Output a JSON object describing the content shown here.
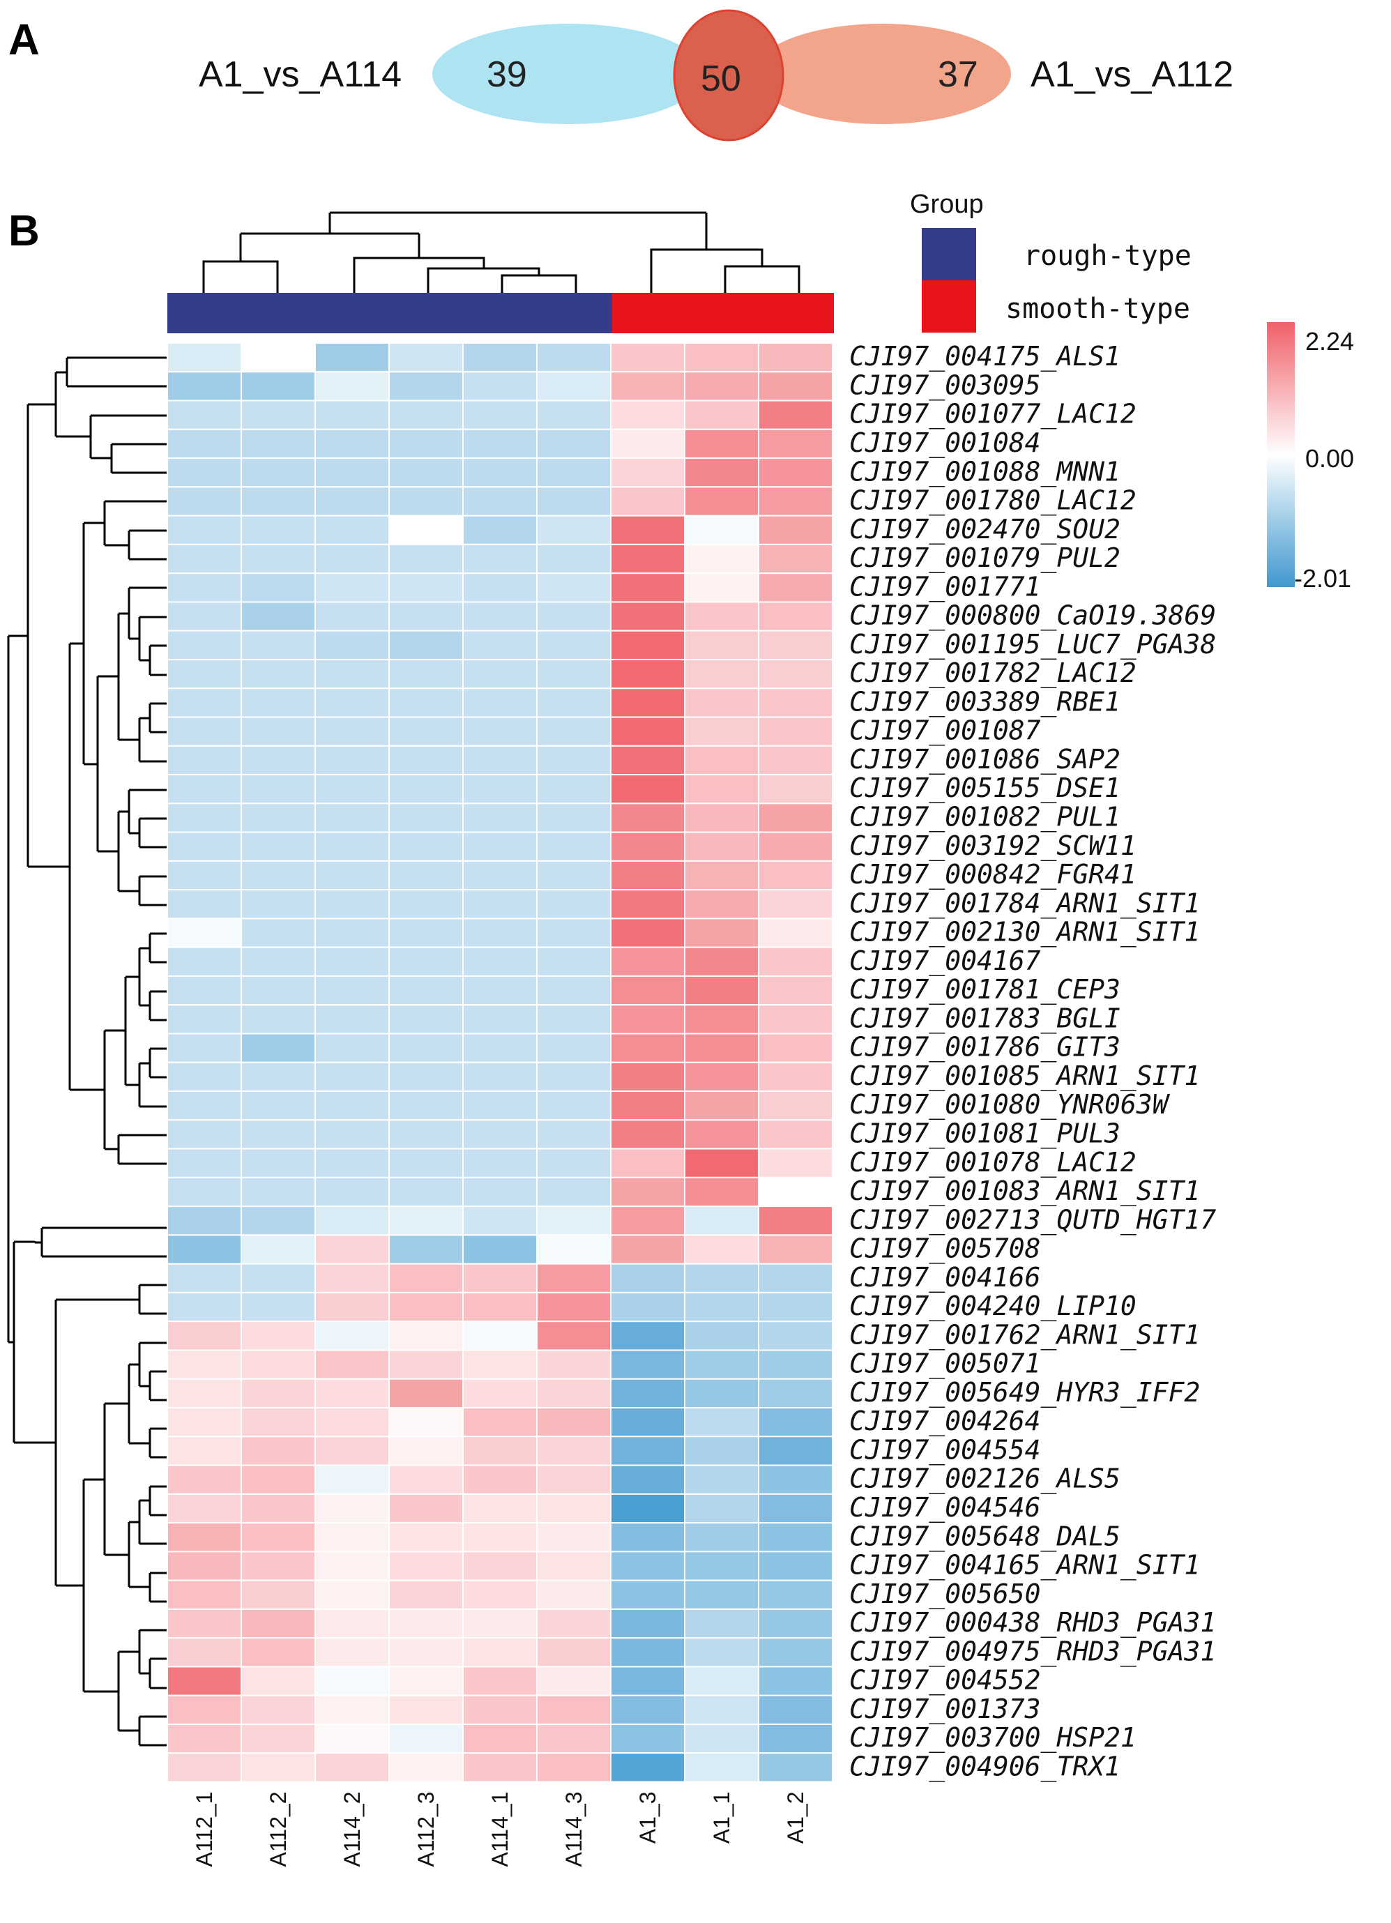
{
  "panel_a": {
    "letter": "A",
    "left_label": "A1_vs_A114",
    "right_label": "A1_vs_A112",
    "left_only": "39",
    "overlap": "50",
    "right_only": "37",
    "left_color": "#aee3f2",
    "right_color": "#f2a58a",
    "overlap_color": "#d9614e"
  },
  "panel_b": {
    "letter": "B",
    "group_legend": {
      "title": "Group",
      "items": [
        {
          "label": "rough-type",
          "color": "#363c8c"
        },
        {
          "label": "smooth-type",
          "color": "#e8131b"
        }
      ]
    },
    "color_scale": {
      "max": "2.24",
      "mid": "0.00",
      "min": "-2.01",
      "low_color": "#3f98cf",
      "mid_color": "#ffffff",
      "high_color": "#f06069"
    }
  },
  "chart_data": {
    "type": "heatmap",
    "title": "",
    "samples": [
      "A112_1",
      "A112_2",
      "A114_2",
      "A112_3",
      "A114_1",
      "A114_3",
      "A1_3",
      "A1_1",
      "A1_2"
    ],
    "sample_groups": [
      "rough-type",
      "rough-type",
      "rough-type",
      "rough-type",
      "rough-type",
      "rough-type",
      "smooth-type",
      "smooth-type",
      "smooth-type"
    ],
    "genes": [
      "CJI97_004175_ALS1",
      "CJI97_003095",
      "CJI97_001077_LAC12",
      "CJI97_001084",
      "CJI97_001088_MNN1",
      "CJI97_001780_LAC12",
      "CJI97_002470_SOU2",
      "CJI97_001079_PUL2",
      "CJI97_001771",
      "CJI97_000800_CaO19.3869",
      "CJI97_001195_LUC7_PGA38",
      "CJI97_001782_LAC12",
      "CJI97_003389_RBE1",
      "CJI97_001087",
      "CJI97_001086_SAP2",
      "CJI97_005155_DSE1",
      "CJI97_001082_PUL1",
      "CJI97_003192_SCW11",
      "CJI97_000842_FGR41",
      "CJI97_001784_ARN1_SIT1",
      "CJI97_002130_ARN1_SIT1",
      "CJI97_004167",
      "CJI97_001781_CEP3",
      "CJI97_001783_BGLI",
      "CJI97_001786_GIT3",
      "CJI97_001085_ARN1_SIT1",
      "CJI97_001080_YNR063W",
      "CJI97_001081_PUL3",
      "CJI97_001078_LAC12",
      "CJI97_001083_ARN1_SIT1",
      "CJI97_002713_QUTD_HGT17",
      "CJI97_005708",
      "CJI97_004166",
      "CJI97_004240_LIP10",
      "CJI97_001762_ARN1_SIT1",
      "CJI97_005071",
      "CJI97_005649_HYR3_IFF2",
      "CJI97_004264",
      "CJI97_004554",
      "CJI97_002126_ALS5",
      "CJI97_004546",
      "CJI97_005648_DAL5",
      "CJI97_004165_ARN1_SIT1",
      "CJI97_005650",
      "CJI97_000438_RHD3_PGA31",
      "CJI97_004975_RHD3_PGA31",
      "CJI97_004552",
      "CJI97_001373",
      "CJI97_003700_HSP21",
      "CJI97_004906_TRX1"
    ],
    "values": [
      [
        -0.4,
        0.0,
        -1.0,
        -0.5,
        -0.8,
        -0.7,
        0.8,
        0.9,
        1.0
      ],
      [
        -1.0,
        -1.0,
        -0.3,
        -0.8,
        -0.6,
        -0.4,
        1.1,
        1.2,
        1.3
      ],
      [
        -0.6,
        -0.6,
        -0.6,
        -0.6,
        -0.6,
        -0.6,
        0.5,
        0.8,
        1.8
      ],
      [
        -0.7,
        -0.7,
        -0.7,
        -0.7,
        -0.7,
        -0.7,
        0.3,
        1.6,
        1.4
      ],
      [
        -0.7,
        -0.7,
        -0.7,
        -0.7,
        -0.7,
        -0.7,
        0.6,
        1.7,
        1.5
      ],
      [
        -0.7,
        -0.7,
        -0.7,
        -0.7,
        -0.7,
        -0.7,
        0.8,
        1.6,
        1.4
      ],
      [
        -0.6,
        -0.6,
        -0.6,
        0.0,
        -0.8,
        -0.5,
        2.0,
        -0.1,
        1.3
      ],
      [
        -0.6,
        -0.6,
        -0.6,
        -0.6,
        -0.6,
        -0.6,
        2.0,
        0.2,
        1.1
      ],
      [
        -0.6,
        -0.7,
        -0.5,
        -0.5,
        -0.6,
        -0.5,
        2.0,
        0.2,
        1.2
      ],
      [
        -0.6,
        -0.9,
        -0.6,
        -0.6,
        -0.6,
        -0.6,
        2.0,
        0.8,
        0.9
      ],
      [
        -0.6,
        -0.6,
        -0.7,
        -0.8,
        -0.6,
        -0.6,
        2.1,
        0.7,
        0.7
      ],
      [
        -0.6,
        -0.6,
        -0.6,
        -0.6,
        -0.6,
        -0.6,
        2.1,
        0.7,
        0.7
      ],
      [
        -0.6,
        -0.6,
        -0.6,
        -0.6,
        -0.6,
        -0.6,
        2.1,
        0.8,
        0.8
      ],
      [
        -0.6,
        -0.6,
        -0.6,
        -0.6,
        -0.6,
        -0.6,
        2.1,
        0.7,
        0.8
      ],
      [
        -0.6,
        -0.6,
        -0.6,
        -0.6,
        -0.6,
        -0.6,
        2.0,
        0.9,
        0.8
      ],
      [
        -0.6,
        -0.6,
        -0.6,
        -0.6,
        -0.6,
        -0.6,
        2.1,
        0.9,
        0.7
      ],
      [
        -0.6,
        -0.6,
        -0.6,
        -0.6,
        -0.6,
        -0.6,
        1.7,
        1.0,
        1.3
      ],
      [
        -0.6,
        -0.6,
        -0.6,
        -0.6,
        -0.6,
        -0.6,
        1.7,
        1.0,
        1.2
      ],
      [
        -0.6,
        -0.6,
        -0.6,
        -0.6,
        -0.6,
        -0.6,
        1.8,
        1.1,
        0.9
      ],
      [
        -0.6,
        -0.6,
        -0.6,
        -0.6,
        -0.6,
        -0.6,
        1.9,
        1.2,
        0.6
      ],
      [
        -0.1,
        -0.6,
        -0.6,
        -0.6,
        -0.6,
        -0.6,
        2.0,
        1.3,
        0.3
      ],
      [
        -0.6,
        -0.6,
        -0.6,
        -0.6,
        -0.6,
        -0.6,
        1.5,
        1.7,
        0.8
      ],
      [
        -0.6,
        -0.6,
        -0.6,
        -0.6,
        -0.6,
        -0.6,
        1.6,
        1.8,
        0.8
      ],
      [
        -0.6,
        -0.6,
        -0.6,
        -0.6,
        -0.6,
        -0.6,
        1.5,
        1.6,
        0.8
      ],
      [
        -0.6,
        -1.0,
        -0.6,
        -0.6,
        -0.6,
        -0.6,
        1.6,
        1.6,
        0.9
      ],
      [
        -0.6,
        -0.6,
        -0.6,
        -0.6,
        -0.6,
        -0.6,
        1.8,
        1.5,
        0.8
      ],
      [
        -0.6,
        -0.6,
        -0.6,
        -0.6,
        -0.6,
        -0.6,
        1.8,
        1.3,
        0.7
      ],
      [
        -0.6,
        -0.6,
        -0.6,
        -0.6,
        -0.6,
        -0.6,
        1.8,
        1.5,
        0.8
      ],
      [
        -0.6,
        -0.6,
        -0.6,
        -0.6,
        -0.6,
        -0.6,
        0.9,
        2.1,
        0.5
      ],
      [
        -0.6,
        -0.6,
        -0.6,
        -0.6,
        -0.6,
        -0.6,
        1.3,
        1.6,
        0.0
      ],
      [
        -0.9,
        -0.8,
        -0.4,
        -0.3,
        -0.5,
        -0.3,
        1.4,
        -0.4,
        1.8
      ],
      [
        -1.2,
        -0.3,
        0.6,
        -1.0,
        -1.2,
        -0.1,
        1.3,
        0.5,
        1.1
      ],
      [
        -0.6,
        -0.6,
        0.6,
        0.9,
        0.8,
        1.4,
        -0.9,
        -0.8,
        -0.8
      ],
      [
        -0.6,
        -0.6,
        0.7,
        0.9,
        0.9,
        1.5,
        -0.9,
        -0.8,
        -0.8
      ],
      [
        0.7,
        0.5,
        -0.2,
        0.2,
        -0.1,
        1.6,
        -1.6,
        -0.9,
        -0.8
      ],
      [
        0.4,
        0.5,
        0.8,
        0.6,
        0.4,
        0.6,
        -1.4,
        -1.0,
        -1.0
      ],
      [
        0.4,
        0.6,
        0.5,
        1.3,
        0.5,
        0.6,
        -1.5,
        -1.1,
        -1.0
      ],
      [
        0.4,
        0.6,
        0.5,
        0.1,
        0.9,
        1.0,
        -1.6,
        -0.7,
        -1.3
      ],
      [
        0.4,
        0.8,
        0.6,
        0.2,
        0.7,
        0.6,
        -1.5,
        -0.9,
        -1.5
      ],
      [
        0.8,
        0.9,
        -0.2,
        0.5,
        0.8,
        0.6,
        -1.6,
        -0.8,
        -1.2
      ],
      [
        0.6,
        0.8,
        0.2,
        0.8,
        0.4,
        0.4,
        -1.9,
        -0.8,
        -1.3
      ],
      [
        1.1,
        0.9,
        0.2,
        0.4,
        0.4,
        0.3,
        -1.3,
        -1.0,
        -1.2
      ],
      [
        1.0,
        0.8,
        0.2,
        0.5,
        0.6,
        0.4,
        -1.2,
        -1.1,
        -1.2
      ],
      [
        0.9,
        0.7,
        0.2,
        0.6,
        0.5,
        0.3,
        -1.2,
        -1.1,
        -1.1
      ],
      [
        0.8,
        1.0,
        0.3,
        0.3,
        0.3,
        0.6,
        -1.4,
        -0.8,
        -1.1
      ],
      [
        0.7,
        0.9,
        0.3,
        0.3,
        0.4,
        0.7,
        -1.4,
        -0.7,
        -1.1
      ],
      [
        1.9,
        0.4,
        -0.1,
        0.2,
        0.8,
        0.3,
        -1.4,
        -0.4,
        -1.2
      ],
      [
        0.9,
        0.6,
        0.2,
        0.4,
        0.8,
        0.9,
        -1.3,
        -0.5,
        -1.3
      ],
      [
        0.8,
        0.6,
        0.1,
        -0.2,
        0.9,
        0.8,
        -1.2,
        -0.5,
        -1.3
      ],
      [
        0.6,
        0.4,
        0.6,
        0.2,
        0.8,
        0.9,
        -1.8,
        -0.4,
        -1.1
      ]
    ],
    "value_range": [
      -2.01,
      2.24
    ]
  }
}
